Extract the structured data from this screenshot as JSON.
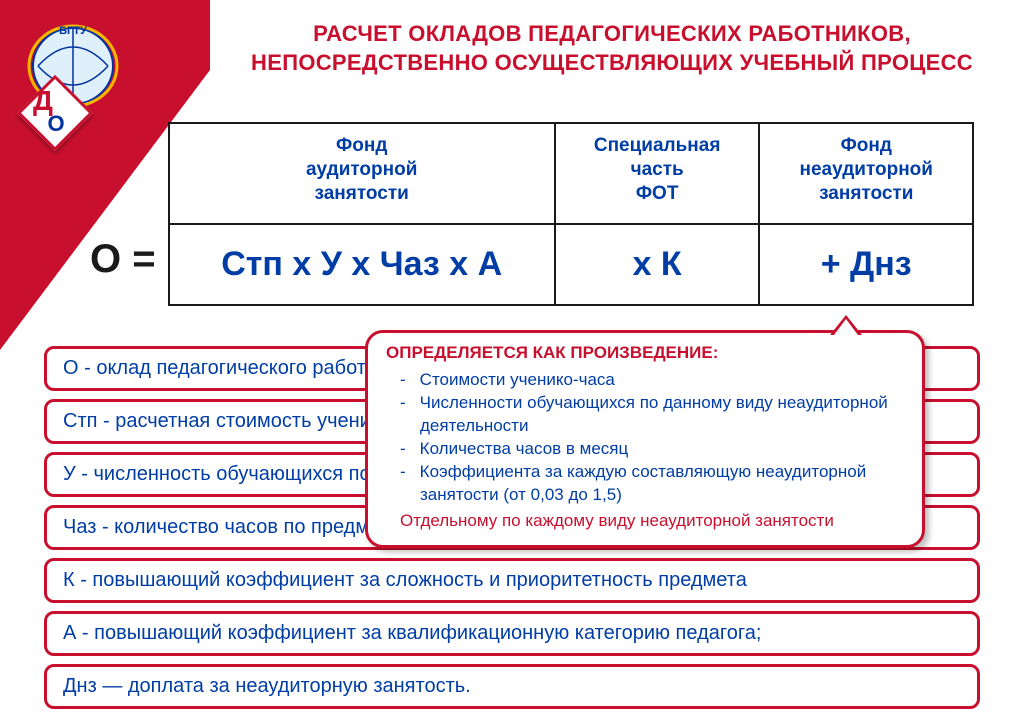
{
  "colors": {
    "brand_red": "#c8102e",
    "brand_blue": "#003da5",
    "text_black": "#1a1a1a",
    "bg": "#ffffff"
  },
  "logo": {
    "ring_text": "БГТУ",
    "diamond_letters": {
      "d": "Д",
      "o": "О"
    }
  },
  "title": "РАСЧЕТ ОКЛАДОВ ПЕДАГОГИЧЕСКИХ РАБОТНИКОВ, НЕПОСРЕДСТВЕННО ОСУЩЕСТВЛЯЮЩИХ УЧЕБНЫЙ ПРОЦЕСС",
  "formula": {
    "lhs": "О =",
    "columns": [
      {
        "header": "Фонд\nаудиторной\nзанятости",
        "value": "Стп  x  У x Чаз x А"
      },
      {
        "header": "Специальная\nчасть\nФОТ",
        "value": "x К"
      },
      {
        "header": "Фонд\nнеаудиторной\nзанятости",
        "value": "+ Днз"
      }
    ]
  },
  "definitions": [
    "О - оклад педагогического работника;",
    "Стп - расчетная стоимость ученико-часа (руб./ученико-час);",
    "У - численность обучающихся по предмету в каждом классе;",
    "Чаз - количество часов по предмету по учебному плану в месяц в каждом классе;",
    "К - повышающий коэффициент за сложность и приоритетность предмета",
    "А - повышающий коэффициент за квалификационную категорию педагога;",
    "Днз — доплата за неаудиторную занятость."
  ],
  "callout": {
    "title": "ОПРЕДЕЛЯЕТСЯ КАК ПРОИЗВЕДЕНИЕ:",
    "items": [
      "Стоимости ученико-часа",
      "Численности обучающихся по данному виду неаудиторной деятельности",
      "Количества часов в месяц",
      "Коэффициента за каждую составляющую неаудиторной занятости (от 0,03 до 1,5)"
    ],
    "footer": "Отдельному по каждому виду неаудиторной занятости"
  }
}
